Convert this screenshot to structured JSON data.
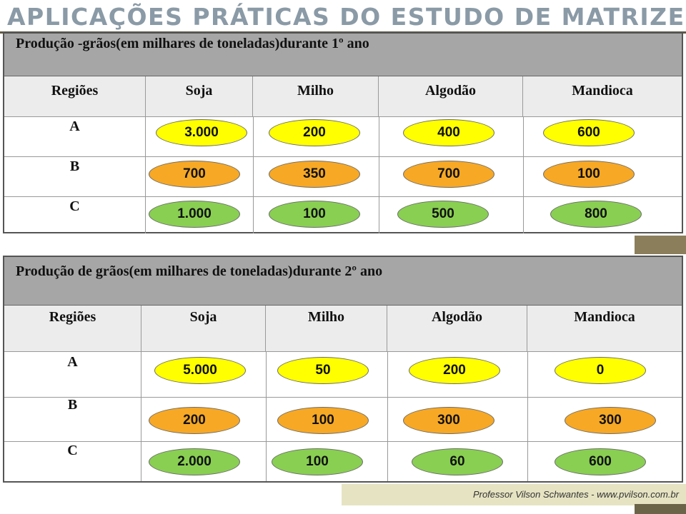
{
  "title": "APLICAÇÕES PRÁTICAS DO ESTUDO DE MATRIZES",
  "footer": "Professor Vilson Schwantes - www.pvilson.com.br",
  "colors": {
    "row_a": "#ffff00",
    "row_b": "#f7a824",
    "row_c": "#89cf52",
    "caption_bg": "#a6a6a6",
    "footer_bg": "#e6e3c2"
  },
  "tables": [
    {
      "caption": "Produção -grãos(em  milhares  de toneladas)durante 1º ano",
      "headers": [
        "Regiões",
        "Soja",
        "Milho",
        "Algodão",
        "Mandioca"
      ],
      "rows": [
        {
          "label": "A",
          "values": [
            "3.000",
            "200",
            "400",
            "600"
          ]
        },
        {
          "label": "B",
          "values": [
            "700",
            "350",
            "700",
            "100"
          ]
        },
        {
          "label": "C",
          "values": [
            "1.000",
            "100",
            "500",
            "800"
          ]
        }
      ]
    },
    {
      "caption": "Produção de grãos(em  milhares  de toneladas)durante 2º ano",
      "headers": [
        "Regiões",
        "Soja",
        "Milho",
        "Algodão",
        "Mandioca"
      ],
      "rows": [
        {
          "label": "A",
          "values": [
            "5.000",
            "50",
            "200",
            "0"
          ]
        },
        {
          "label": "B",
          "values": [
            "200",
            "100",
            "300",
            "300"
          ]
        },
        {
          "label": "C",
          "values": [
            "2.000",
            "100",
            "60",
            "600"
          ]
        }
      ]
    }
  ]
}
